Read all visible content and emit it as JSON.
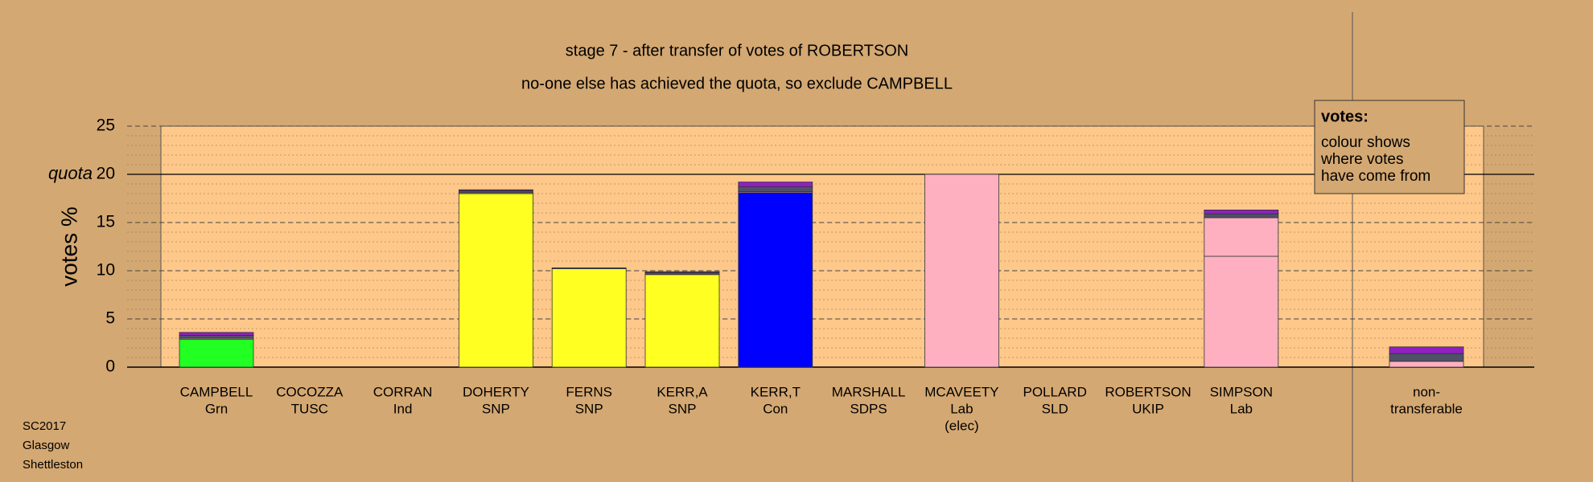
{
  "chart_data": {
    "type": "stacked_bar",
    "title": "stage 7 - after transfer of votes of ROBERTSON",
    "subtitle": "no-one else has achieved the quota, so exclude CAMPBELL",
    "y_label": "votes %",
    "categories": [
      [
        "CAMPBELL",
        "Grn"
      ],
      [
        "COCOZZA",
        "TUSC"
      ],
      [
        "CORRAN",
        "Ind"
      ],
      [
        "DOHERTY",
        "SNP"
      ],
      [
        "FERNS",
        "SNP"
      ],
      [
        "KERR,A",
        "SNP"
      ],
      [
        "KERR,T",
        "Con"
      ],
      [
        "MARSHALL",
        "SDPS"
      ],
      [
        "MCAVEETY",
        "Lab",
        "(elec)"
      ],
      [
        "POLLARD",
        "SLD"
      ],
      [
        "ROBERTSON",
        "UKIP"
      ],
      [
        "SIMPSON",
        "Lab"
      ],
      [
        "non-",
        "transferable"
      ]
    ],
    "series": [
      {
        "colors": [
          "#22ff22",
          "#22ff22",
          "#22ff22",
          "#ffff22",
          "#ffff22",
          "#ffff22",
          "#0000ff",
          "#cccccc",
          "#ffb0c0",
          "#ffa500",
          "#8b00ff",
          "#ffb0c0",
          "#ffffff"
        ],
        "values": [
          2.9,
          0,
          0,
          18.0,
          10.2,
          9.6,
          18.1,
          0,
          20.0,
          0,
          0,
          11.5,
          0
        ]
      },
      {
        "color": "#ffb0c0",
        "values": [
          0.1,
          0,
          0,
          0.1,
          0,
          0,
          0.1,
          0,
          0,
          0,
          0,
          4.0,
          0.6
        ]
      },
      {
        "color": "#50506a",
        "values": [
          0.3,
          0,
          0,
          0.2,
          0.1,
          0.2,
          0.5,
          0,
          0,
          0,
          0,
          0.4,
          0.8
        ]
      },
      {
        "color": "#9020c0",
        "values": [
          0.3,
          0,
          0,
          0.1,
          0,
          0.1,
          0.5,
          0,
          0,
          0,
          0,
          0.4,
          0.7
        ]
      }
    ],
    "ylim": [
      0,
      25
    ],
    "yticks": [
      0,
      5,
      10,
      15,
      20,
      25
    ],
    "minor_grid_step": 1,
    "quota": {
      "value": 20,
      "label": "quota"
    },
    "legend": {
      "title": "votes:",
      "lines": [
        "colour shows",
        "where votes",
        "have come from"
      ]
    },
    "footer": [
      "SC2017",
      "Glasgow",
      "Shettleston"
    ]
  }
}
